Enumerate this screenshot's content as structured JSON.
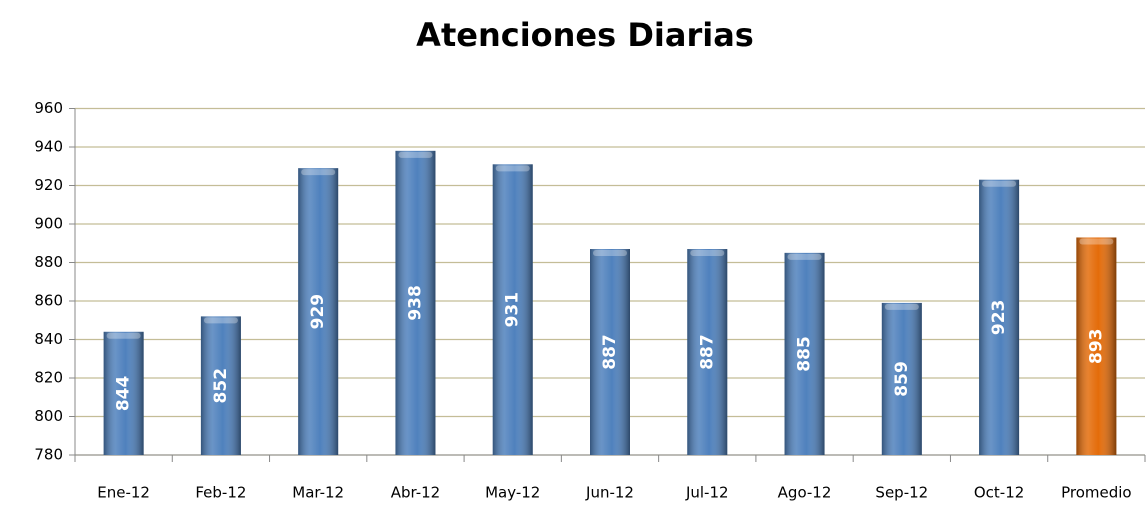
{
  "chart_data": {
    "type": "bar",
    "title": "Atenciones Diarias",
    "categories": [
      "Ene-12",
      "Feb-12",
      "Mar-12",
      "Abr-12",
      "May-12",
      "Jun-12",
      "Jul-12",
      "Ago-12",
      "Sep-12",
      "Oct-12",
      "Promedio"
    ],
    "values": [
      844,
      852,
      929,
      938,
      931,
      887,
      887,
      885,
      859,
      923,
      893
    ],
    "colors": [
      "#4f81bd",
      "#4f81bd",
      "#4f81bd",
      "#4f81bd",
      "#4f81bd",
      "#4f81bd",
      "#4f81bd",
      "#4f81bd",
      "#4f81bd",
      "#4f81bd",
      "#e46c0a"
    ],
    "ylim": [
      780,
      960
    ],
    "yticks": [
      780,
      800,
      820,
      840,
      860,
      880,
      900,
      920,
      940,
      960
    ],
    "grid": true
  }
}
